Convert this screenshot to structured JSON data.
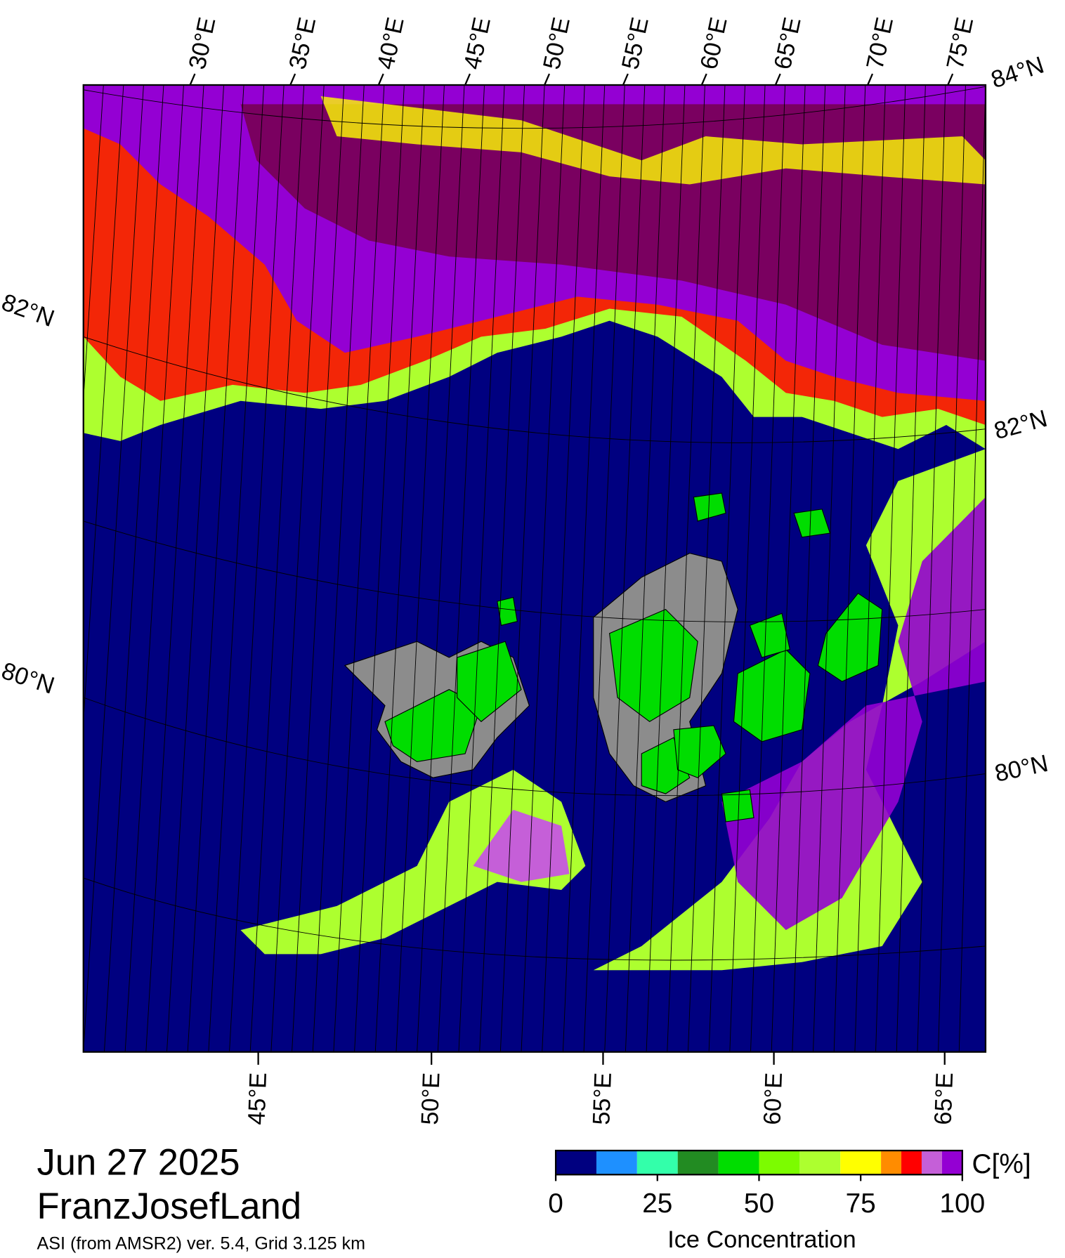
{
  "map": {
    "lon_labels_top": [
      "30°E",
      "35°E",
      "40°E",
      "45°E",
      "50°E",
      "55°E",
      "60°E",
      "65°E",
      "70°E",
      "75°E"
    ],
    "lon_labels_bottom": [
      "45°E",
      "50°E",
      "55°E",
      "60°E",
      "65°E"
    ],
    "lat_labels_right": [
      "84°N",
      "82°N",
      "80°N"
    ],
    "lat_labels_left": [
      "82°N",
      "80°N"
    ]
  },
  "footer": {
    "date": "Jun 27 2025",
    "region": "FranzJosefLand",
    "product": "ASI (from AMSR2) ver. 5.4,  Grid 3.125 km"
  },
  "colorbar": {
    "unit": "C[%]",
    "label": "Ice Concentration",
    "bounds": [
      0,
      10,
      20,
      30,
      40,
      50,
      60,
      70,
      80,
      85,
      90,
      95,
      100
    ],
    "colors": [
      "#000080",
      "#1e90ff",
      "#33ffaa",
      "#228b22",
      "#00dd00",
      "#7cfc00",
      "#adff2f",
      "#ffff00",
      "#ff8c00",
      "#ff0000",
      "#c55fd8",
      "#9400d3"
    ],
    "ticks": [
      0,
      25,
      50,
      75,
      100
    ]
  }
}
